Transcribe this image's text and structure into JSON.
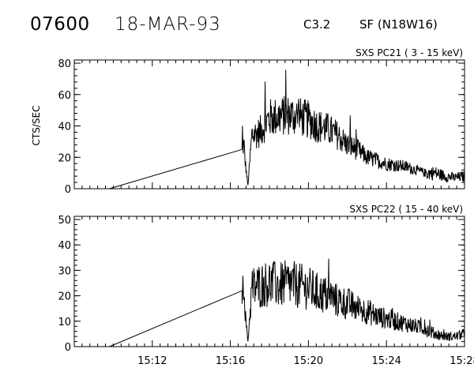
{
  "header": {
    "event_id": "07600",
    "date": "18-MAR-93",
    "flare_class": "C3.2",
    "flare_location": "SF (N18W16)"
  },
  "chart_data": [
    {
      "type": "line",
      "title": "SXS PC21  (  3 - 15 keV)",
      "ylabel": "CTS/SEC",
      "xlabel": "",
      "xlim": [
        "15:08",
        "15:28"
      ],
      "ylim": [
        0,
        80
      ],
      "y_ticks": [
        "0",
        "20",
        "40",
        "60",
        "80"
      ],
      "x_tick_labels": [
        "15:12",
        "15:16",
        "15:20",
        "15:24",
        "15:28"
      ],
      "grid": false,
      "series": [
        {
          "note_x": "minutes after 15:00",
          "x": [
            9.8,
            16.6,
            16.7,
            16.75,
            16.9,
            17.1,
            17.5,
            18.0,
            18.5,
            19.0,
            19.5,
            20.0,
            20.5,
            21.0,
            21.5,
            22.0,
            22.5,
            23.0,
            23.5,
            24.0,
            24.5,
            25.0,
            25.5,
            26.0,
            26.5,
            27.0,
            27.5,
            28.0
          ],
          "y": [
            0,
            25,
            28,
            18,
            2,
            34,
            36,
            45,
            46,
            47,
            46,
            44,
            40,
            38,
            34,
            28,
            25,
            20,
            18,
            16,
            15,
            14,
            12,
            10,
            10,
            8,
            7,
            8
          ]
        }
      ]
    },
    {
      "type": "line",
      "title": "SXS PC22  ( 15 - 40 keV)",
      "ylabel": "",
      "xlabel": "",
      "xlim": [
        "15:08",
        "15:28"
      ],
      "ylim": [
        0,
        50
      ],
      "y_ticks": [
        "0",
        "10",
        "20",
        "30",
        "40",
        "50"
      ],
      "x_tick_labels": [
        "15:12",
        "15:16",
        "15:20",
        "15:24",
        "15:28"
      ],
      "grid": false,
      "series": [
        {
          "note_x": "minutes after 15:00",
          "x": [
            9.8,
            16.6,
            16.7,
            16.75,
            16.9,
            17.1,
            17.5,
            18.0,
            18.5,
            19.0,
            19.5,
            20.0,
            20.5,
            21.0,
            21.5,
            22.0,
            22.5,
            23.0,
            23.5,
            24.0,
            24.5,
            25.0,
            25.5,
            26.0,
            26.5,
            27.0,
            27.5,
            28.0
          ],
          "y": [
            0,
            22,
            24,
            14,
            2,
            23,
            24,
            25,
            24,
            25,
            24,
            23,
            21,
            20,
            18,
            17,
            15,
            14,
            12,
            11,
            10,
            9,
            8,
            7,
            5,
            4,
            4,
            5
          ]
        }
      ]
    }
  ]
}
